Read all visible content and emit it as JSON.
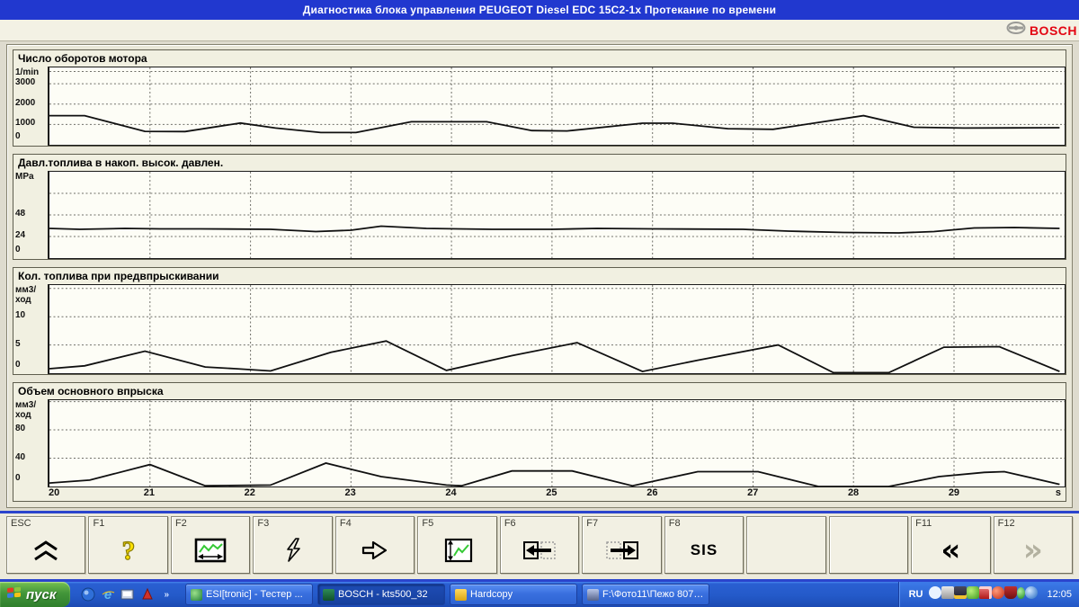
{
  "window": {
    "title": "Диагностика блока управления  PEUGEOT  Diesel EDC 15C2-1x  Протекание по времени"
  },
  "brand": {
    "wordmark": "BOSCH",
    "color": "#e30613"
  },
  "x_axis": {
    "range": [
      20,
      30.1
    ],
    "gridlines": [
      21,
      22,
      23,
      24,
      25,
      26,
      27,
      28,
      29
    ],
    "tick_labels": [
      "20",
      "21",
      "22",
      "23",
      "24",
      "25",
      "26",
      "27",
      "28",
      "29"
    ],
    "unit_label": "s"
  },
  "chart_data": [
    {
      "type": "line",
      "title": "Число оборотов мотора",
      "unit": "1/min",
      "ylim": [
        0,
        3800
      ],
      "ytick_labels": [
        3000,
        2000,
        1000,
        0
      ],
      "grid_values": [
        1000,
        2000,
        3000,
        3600
      ],
      "series": [
        {
          "name": "Число оборотов мотора",
          "points": [
            [
              20.0,
              1430
            ],
            [
              20.35,
              1430
            ],
            [
              20.95,
              660
            ],
            [
              21.35,
              650
            ],
            [
              21.9,
              1070
            ],
            [
              22.25,
              820
            ],
            [
              22.7,
              600
            ],
            [
              23.05,
              600
            ],
            [
              23.6,
              1130
            ],
            [
              24.35,
              1130
            ],
            [
              24.8,
              700
            ],
            [
              25.15,
              680
            ],
            [
              25.9,
              1060
            ],
            [
              26.2,
              1060
            ],
            [
              26.75,
              790
            ],
            [
              27.2,
              760
            ],
            [
              28.1,
              1430
            ],
            [
              28.6,
              860
            ],
            [
              29.1,
              820
            ],
            [
              29.6,
              830
            ],
            [
              30.05,
              840
            ]
          ]
        }
      ]
    },
    {
      "type": "line",
      "title": "Давл.топлива в накоп. высок. давлен.",
      "unit": "MPa",
      "ylim": [
        0,
        96
      ],
      "ytick_labels": [
        48,
        24,
        0
      ],
      "grid_values": [
        24,
        48,
        72
      ],
      "series": [
        {
          "name": "Давл.топлива в накоп. высок. давлен.",
          "points": [
            [
              20.0,
              33
            ],
            [
              20.3,
              32
            ],
            [
              20.75,
              33
            ],
            [
              21.1,
              32.5
            ],
            [
              21.5,
              32.5
            ],
            [
              22.2,
              32
            ],
            [
              22.65,
              29.5
            ],
            [
              23.0,
              31
            ],
            [
              23.3,
              35.5
            ],
            [
              23.75,
              33
            ],
            [
              24.4,
              32
            ],
            [
              25.0,
              32
            ],
            [
              25.45,
              33
            ],
            [
              26.0,
              32.5
            ],
            [
              26.9,
              32
            ],
            [
              27.35,
              30
            ],
            [
              27.9,
              28.5
            ],
            [
              28.45,
              28
            ],
            [
              28.8,
              29.5
            ],
            [
              29.2,
              33.5
            ],
            [
              29.6,
              34
            ],
            [
              30.05,
              33
            ]
          ]
        }
      ]
    },
    {
      "type": "line",
      "title": "Кол. топлива при предвпрыскивании",
      "unit": "мм3/ход",
      "ylim": [
        0,
        15.6
      ],
      "ytick_labels": [
        10,
        5,
        0
      ],
      "grid_values": [
        5,
        10,
        15
      ],
      "series": [
        {
          "name": "Кол. топлива при предвпрыскивании",
          "points": [
            [
              20.0,
              0.8
            ],
            [
              20.35,
              1.3
            ],
            [
              20.95,
              3.9
            ],
            [
              21.55,
              1.1
            ],
            [
              21.85,
              0.8
            ],
            [
              22.2,
              0.4
            ],
            [
              22.8,
              3.7
            ],
            [
              23.35,
              5.7
            ],
            [
              23.95,
              0.5
            ],
            [
              24.6,
              3.1
            ],
            [
              25.25,
              5.4
            ],
            [
              25.9,
              0.3
            ],
            [
              26.45,
              2.3
            ],
            [
              27.25,
              5.0
            ],
            [
              27.8,
              0.1
            ],
            [
              28.35,
              0.1
            ],
            [
              28.9,
              4.6
            ],
            [
              29.45,
              4.7
            ],
            [
              30.05,
              0.3
            ]
          ]
        }
      ]
    },
    {
      "type": "line",
      "title": "Объем основного впрыска",
      "unit": "мм3/ход",
      "ylim": [
        0,
        122
      ],
      "ytick_labels": [
        80,
        40,
        0
      ],
      "grid_values": [
        40,
        80,
        120
      ],
      "series": [
        {
          "name": "Объем основного впрыска",
          "points": [
            [
              20.0,
              5
            ],
            [
              20.4,
              9
            ],
            [
              21.0,
              31
            ],
            [
              21.55,
              1
            ],
            [
              22.2,
              2
            ],
            [
              22.75,
              33
            ],
            [
              23.3,
              14
            ],
            [
              23.95,
              2
            ],
            [
              24.1,
              1
            ],
            [
              24.6,
              22
            ],
            [
              25.2,
              22
            ],
            [
              25.8,
              1
            ],
            [
              26.45,
              21
            ],
            [
              27.05,
              21
            ],
            [
              27.65,
              0
            ],
            [
              28.35,
              0
            ],
            [
              28.85,
              14
            ],
            [
              29.3,
              20
            ],
            [
              29.5,
              21
            ],
            [
              30.05,
              3
            ]
          ]
        }
      ]
    }
  ],
  "function_keys": [
    {
      "key": "ESC",
      "icon": "chevrons-up"
    },
    {
      "key": "F1",
      "icon": "help-question"
    },
    {
      "key": "F2",
      "icon": "graph-window"
    },
    {
      "key": "F3",
      "icon": "lightning"
    },
    {
      "key": "F4",
      "icon": "jump-arrow"
    },
    {
      "key": "F5",
      "icon": "graph-scale"
    },
    {
      "key": "F6",
      "icon": "scroll-left"
    },
    {
      "key": "F7",
      "icon": "scroll-right"
    },
    {
      "key": "F8",
      "icon": "",
      "label": "SIS"
    },
    {
      "key": "",
      "icon": ""
    },
    {
      "key": "",
      "icon": ""
    },
    {
      "key": "F11",
      "icon": "chevrons-left"
    },
    {
      "key": "F12",
      "icon": "chevrons-right",
      "disabled": true
    }
  ],
  "taskbar": {
    "start_label": "пуск",
    "quick_launch_icons": [
      "app-blue",
      "internet-explorer",
      "show-desktop",
      "media-red"
    ],
    "overflow_chevron": "»",
    "tasks": [
      {
        "label": "ESI[tronic] - Тестер ...",
        "active": false
      },
      {
        "label": "BOSCH - kts500_32",
        "active": true
      },
      {
        "label": "Hardcopy",
        "active": false
      },
      {
        "label": "F:\\Фото11\\Пежо 807\\...",
        "active": false
      }
    ],
    "tray": {
      "language": "RU",
      "icons": [
        "collapse-arrow",
        "printer",
        "devices",
        "green-app",
        "red-chart",
        "red-app",
        "red-shield",
        "green-dot",
        "blue-sphere"
      ],
      "clock": "12:05"
    }
  }
}
